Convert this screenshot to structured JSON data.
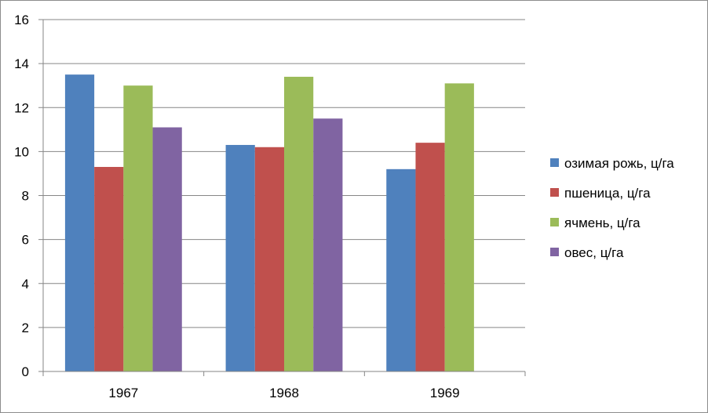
{
  "chart_data": {
    "type": "bar",
    "categories": [
      "1967",
      "1968",
      "1969"
    ],
    "series": [
      {
        "name": "озимая рожь, ц/га",
        "color": "#4f81bd",
        "values": [
          13.5,
          10.3,
          9.2
        ]
      },
      {
        "name": "пшеница, ц/га",
        "color": "#c0504d",
        "values": [
          9.3,
          10.2,
          10.4
        ]
      },
      {
        "name": "ячмень, ц/га",
        "color": "#9bbb59",
        "values": [
          13.0,
          13.4,
          13.1
        ]
      },
      {
        "name": "овес, ц/га",
        "color": "#8064a2",
        "values": [
          11.1,
          11.5,
          null
        ]
      }
    ],
    "title": "",
    "xlabel": "",
    "ylabel": "",
    "ylim": [
      0,
      16
    ],
    "yticks": [
      "0",
      "2",
      "4",
      "6",
      "8",
      "10",
      "12",
      "14",
      "16"
    ],
    "grid": true,
    "legend_position": "right"
  }
}
